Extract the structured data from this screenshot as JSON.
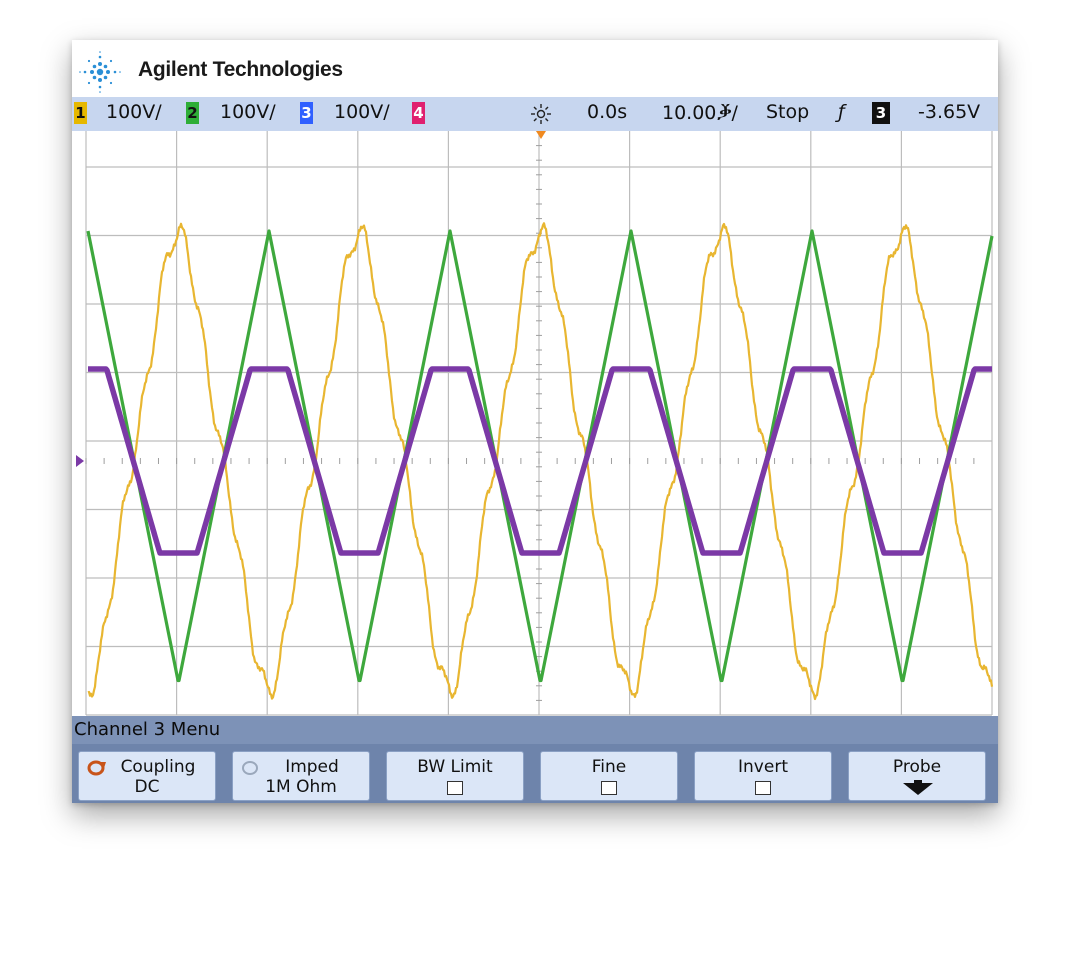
{
  "brand": {
    "name": "Agilent Technologies"
  },
  "status": {
    "ch1": {
      "num": "1",
      "scale": "100V/",
      "color": "#e6b800"
    },
    "ch2": {
      "num": "2",
      "scale": "100V/",
      "color": "#2eae37"
    },
    "ch3": {
      "num": "3",
      "scale": "100V/",
      "color": "#3060ff"
    },
    "ch4": {
      "num": "4",
      "color": "#e0206f"
    },
    "time_ref": "0.0s",
    "time_base": "10.00ⷃ/",
    "run_state": "Stop",
    "trigger_channel": "3",
    "trigger_level": "-3.65V"
  },
  "menu": {
    "title": "Channel 3  Menu",
    "keys": [
      {
        "label": "Coupling",
        "value": "DC"
      },
      {
        "label": "Imped",
        "value": "1M Ohm"
      },
      {
        "label": "BW Limit"
      },
      {
        "label": "Fine"
      },
      {
        "label": "Invert"
      },
      {
        "label": "Probe"
      }
    ]
  },
  "colors": {
    "yellow_trace": "#e8b631",
    "green_trace": "#3ea83d",
    "purple_trace": "#7b39a6",
    "grid": "#b8b8b8"
  }
}
